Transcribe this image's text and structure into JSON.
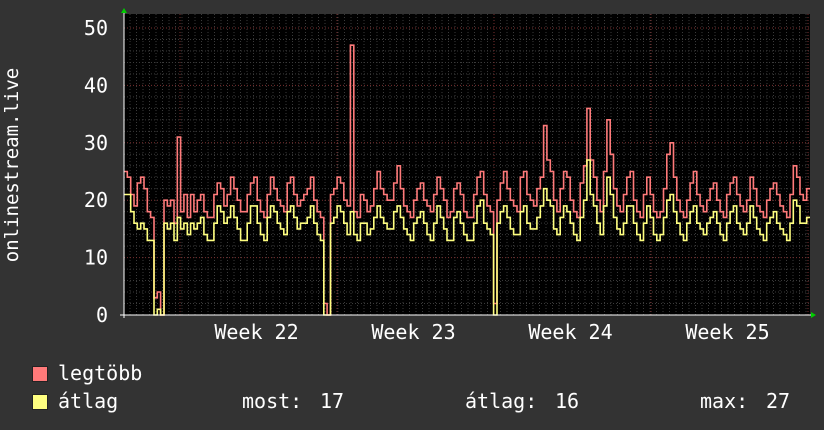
{
  "chart_data": {
    "type": "line",
    "ylabel": "onlinestream.live",
    "ylim": [
      0,
      50
    ],
    "yticks": [
      "0",
      "10",
      "20",
      "30",
      "40",
      "50"
    ],
    "xticks": [
      "Week 22",
      "Week 23",
      "Week 24",
      "Week 25"
    ],
    "grid": true,
    "background": "#000000",
    "series": [
      {
        "name": "legtöbb",
        "color": "#ff7a7a",
        "values": [
          25,
          24,
          21,
          19,
          23,
          24,
          22,
          18,
          17,
          3,
          4,
          0,
          20,
          19,
          20,
          16,
          31,
          18,
          21,
          17,
          21,
          18,
          20,
          21,
          18,
          17,
          17,
          21,
          23,
          22,
          19,
          21,
          24,
          22,
          20,
          18,
          18,
          21,
          23,
          24,
          20,
          18,
          17,
          21,
          24,
          22,
          20,
          19,
          18,
          23,
          24,
          21,
          19,
          20,
          21,
          22,
          24,
          20,
          18,
          17,
          2,
          0,
          21,
          22,
          24,
          23,
          20,
          19,
          47,
          18,
          17,
          21,
          20,
          18,
          19,
          22,
          25,
          22,
          21,
          20,
          20,
          23,
          26,
          22,
          19,
          18,
          17,
          20,
          22,
          23,
          20,
          19,
          18,
          21,
          24,
          22,
          20,
          17,
          18,
          22,
          23,
          21,
          18,
          17,
          17,
          21,
          24,
          25,
          21,
          19,
          18,
          2,
          20,
          23,
          25,
          22,
          20,
          19,
          18,
          24,
          25,
          21,
          20,
          19,
          22,
          24,
          33,
          27,
          25,
          20,
          18,
          22,
          25,
          24,
          20,
          18,
          17,
          23,
          26,
          36,
          27,
          24,
          20,
          18,
          25,
          34,
          28,
          22,
          19,
          18,
          21,
          24,
          25,
          20,
          18,
          17,
          21,
          24,
          21,
          18,
          17,
          18,
          22,
          28,
          30,
          24,
          20,
          18,
          17,
          20,
          23,
          25,
          21,
          19,
          18,
          20,
          22,
          23,
          20,
          18,
          17,
          21,
          23,
          24,
          21,
          19,
          18,
          20,
          24,
          22,
          19,
          18,
          17,
          20,
          22,
          23,
          21,
          19,
          18,
          17,
          21,
          26,
          24,
          21,
          20,
          22
        ]
      },
      {
        "name": "átlag",
        "color": "#ffff80",
        "values": [
          21,
          21,
          18,
          16,
          15,
          16,
          15,
          13,
          13,
          0,
          1,
          0,
          16,
          15,
          16,
          13,
          17,
          15,
          16,
          14,
          16,
          15,
          16,
          17,
          14,
          13,
          13,
          16,
          19,
          18,
          16,
          17,
          19,
          17,
          15,
          13,
          13,
          16,
          19,
          19,
          16,
          14,
          13,
          17,
          19,
          18,
          16,
          15,
          14,
          18,
          19,
          17,
          15,
          16,
          16,
          17,
          19,
          16,
          14,
          13,
          0,
          0,
          16,
          17,
          19,
          18,
          16,
          14,
          18,
          14,
          13,
          16,
          16,
          14,
          15,
          17,
          19,
          17,
          16,
          15,
          15,
          18,
          19,
          17,
          15,
          14,
          13,
          16,
          17,
          18,
          16,
          14,
          13,
          16,
          19,
          17,
          15,
          13,
          13,
          17,
          18,
          16,
          14,
          13,
          13,
          16,
          19,
          20,
          16,
          15,
          14,
          0,
          16,
          18,
          19,
          17,
          15,
          14,
          14,
          18,
          19,
          16,
          15,
          15,
          17,
          19,
          22,
          20,
          19,
          15,
          14,
          17,
          19,
          18,
          16,
          14,
          13,
          17,
          20,
          27,
          21,
          19,
          16,
          14,
          19,
          24,
          21,
          17,
          15,
          14,
          16,
          19,
          19,
          16,
          14,
          13,
          16,
          19,
          17,
          14,
          13,
          14,
          17,
          20,
          21,
          18,
          16,
          14,
          13,
          16,
          18,
          19,
          16,
          15,
          14,
          16,
          17,
          18,
          16,
          14,
          13,
          16,
          18,
          19,
          16,
          15,
          14,
          16,
          19,
          17,
          15,
          14,
          13,
          16,
          17,
          18,
          16,
          15,
          14,
          13,
          16,
          20,
          19,
          16,
          16,
          17
        ]
      }
    ],
    "stats": {
      "most_label": "most:",
      "most_value": "17",
      "atlag_label": "átlag:",
      "atlag_value": "16",
      "max_label": "max:",
      "max_value": "27"
    }
  }
}
